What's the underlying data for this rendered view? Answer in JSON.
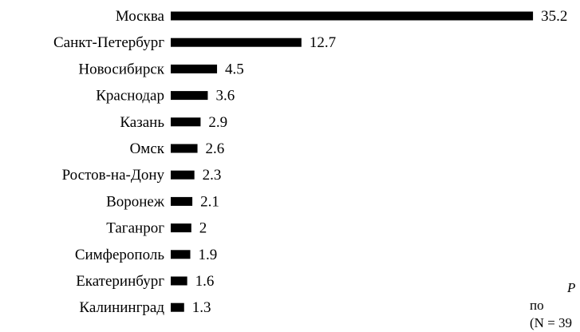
{
  "chart_data": {
    "type": "bar",
    "orientation": "horizontal",
    "categories": [
      "Москва",
      "Санкт-Петербург",
      "Новосибирск",
      "Краснодар",
      "Казань",
      "Омск",
      "Ростов-на-Дону",
      "Воронеж",
      "Таганрог",
      "Симферополь",
      "Екатеринбург",
      "Калининград"
    ],
    "values": [
      35.2,
      12.7,
      4.5,
      3.6,
      2.9,
      2.6,
      2.3,
      2.1,
      2,
      1.9,
      1.6,
      1.3
    ],
    "value_labels": [
      "35.2",
      "12.7",
      "4.5",
      "3.6",
      "2.9",
      "2.6",
      "2.3",
      "2.1",
      "2",
      "1.9",
      "1.6",
      "1.3"
    ],
    "bar_color": "#000000",
    "grid": false,
    "axes_visible": false
  },
  "caption": {
    "line1": "Р",
    "line2": "по   п",
    "line3": "(N = 39"
  }
}
